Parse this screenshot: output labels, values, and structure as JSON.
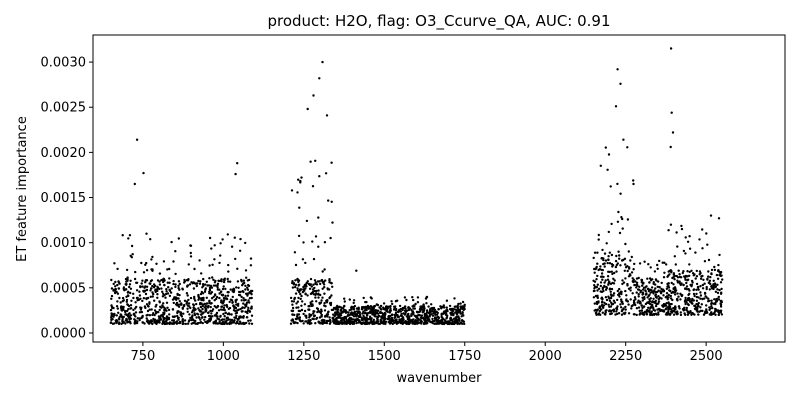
{
  "chart_data": {
    "type": "scatter",
    "title": "product: H2O, flag: O3_Ccurve_QA, AUC: 0.91",
    "xlabel": "wavenumber",
    "ylabel": "ET feature importance",
    "xlim": [
      595,
      2745
    ],
    "ylim": [
      -0.0001,
      0.0033
    ],
    "x_ticks": [
      750,
      1000,
      1250,
      1500,
      1750,
      2000,
      2250,
      2500
    ],
    "x_tick_labels": [
      "750",
      "1000",
      "1250",
      "1500",
      "1750",
      "2000",
      "2250",
      "2500"
    ],
    "y_ticks": [
      0.0,
      0.0005,
      0.001,
      0.0015,
      0.002,
      0.0025,
      0.003
    ],
    "y_tick_labels": [
      "0.0000",
      "0.0005",
      "0.0010",
      "0.0015",
      "0.0020",
      "0.0025",
      "0.0030"
    ],
    "grid": false,
    "marker_color": "#000000",
    "series_note": "dense point cloud; regions summarized by wavenumber band with typical importance ranges",
    "regions": [
      {
        "x_range": [
          650,
          1090
        ],
        "typical": [
          0.0001,
          0.0006
        ],
        "spread_max": 0.0011
      },
      {
        "x_range": [
          1210,
          1340
        ],
        "typical": [
          0.0001,
          0.0006
        ],
        "spread_max": 0.002
      },
      {
        "x_range": [
          1340,
          1750
        ],
        "typical": [
          0.0001,
          0.0003
        ],
        "spread_max": 0.0004
      },
      {
        "x_range": [
          2150,
          2280
        ],
        "typical": [
          0.0002,
          0.0009
        ],
        "spread_max": 0.0021
      },
      {
        "x_range": [
          2280,
          2380
        ],
        "typical": [
          0.0002,
          0.0006
        ],
        "spread_max": 0.0008
      },
      {
        "x_range": [
          2380,
          2550
        ],
        "typical": [
          0.0002,
          0.0007
        ],
        "spread_max": 0.0012
      }
    ],
    "highlighted_points": [
      {
        "x": 732,
        "y": 0.00214
      },
      {
        "x": 752,
        "y": 0.00177
      },
      {
        "x": 725,
        "y": 0.00165
      },
      {
        "x": 1043,
        "y": 0.00188
      },
      {
        "x": 1038,
        "y": 0.00176
      },
      {
        "x": 1308,
        "y": 0.003
      },
      {
        "x": 1298,
        "y": 0.00282
      },
      {
        "x": 1280,
        "y": 0.00263
      },
      {
        "x": 1322,
        "y": 0.00241
      },
      {
        "x": 1262,
        "y": 0.00248
      },
      {
        "x": 1413,
        "y": 0.00069
      },
      {
        "x": 2225,
        "y": 0.00292
      },
      {
        "x": 2234,
        "y": 0.00276
      },
      {
        "x": 2220,
        "y": 0.00251
      },
      {
        "x": 2243,
        "y": 0.00214
      },
      {
        "x": 2391,
        "y": 0.00315
      },
      {
        "x": 2393,
        "y": 0.00244
      },
      {
        "x": 2397,
        "y": 0.00222
      },
      {
        "x": 2390,
        "y": 0.00206
      },
      {
        "x": 2515,
        "y": 0.0013
      },
      {
        "x": 2540,
        "y": 0.00127
      }
    ]
  }
}
